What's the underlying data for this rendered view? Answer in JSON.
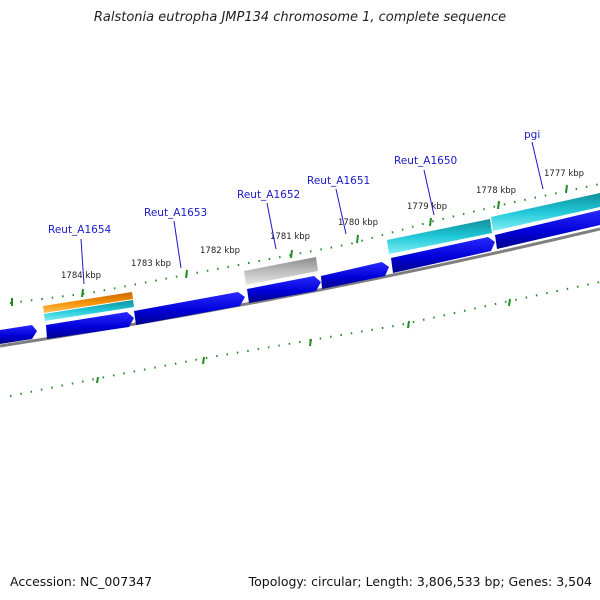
{
  "title": "Ralstonia eutropha JMP134 chromosome 1, complete sequence",
  "footer": {
    "accession": "Accession: NC_007347",
    "stats": "Topology: circular; Length: 3,806,533 bp; Genes: 3,504"
  },
  "genes": [
    "Reut_A1654",
    "Reut_A1653",
    "Reut_A1652",
    "Reut_A1651",
    "Reut_A1650",
    "pgi"
  ],
  "positions": [
    "1784 kbp",
    "1783 kbp",
    "1782 kbp",
    "1781 kbp",
    "1780 kbp",
    "1779 kbp",
    "1778 kbp",
    "1777 kbp"
  ],
  "colors": {
    "cds": "#0000e0",
    "highlight": "#20c8d8",
    "orange": "#f08000",
    "pseudo": "#a0a0a0",
    "backbone": "#808080",
    "tick": "#228b22",
    "label": "#1a1ac8"
  }
}
